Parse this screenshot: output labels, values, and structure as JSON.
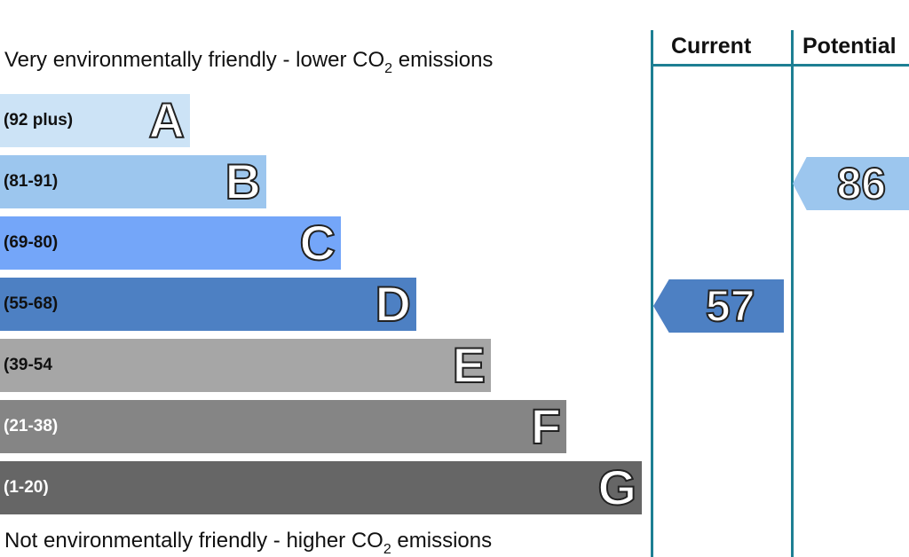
{
  "chart_data": {
    "type": "bar",
    "top_caption": {
      "pre": "Very environmentally friendly - lower CO",
      "sub": "2",
      "post": " emissions"
    },
    "bottom_caption": {
      "pre": "Not environmentally friendly - higher CO",
      "sub": "2",
      "post": " emissions"
    },
    "columns": [
      "Current",
      "Potential"
    ],
    "bands": [
      {
        "letter": "A",
        "range": "(92 plus)",
        "color": "#cce3f6",
        "dark_text": false
      },
      {
        "letter": "B",
        "range": "(81-91)",
        "color": "#9cc6ee",
        "dark_text": false
      },
      {
        "letter": "C",
        "range": "(69-80)",
        "color": "#74a6f9",
        "dark_text": false
      },
      {
        "letter": "D",
        "range": "(55-68)",
        "color": "#4d80c3",
        "dark_text": false
      },
      {
        "letter": "E",
        "range": "(39-54",
        "color": "#a6a6a6",
        "dark_text": false
      },
      {
        "letter": "F",
        "range": "(21-38)",
        "color": "#858585",
        "dark_text": true
      },
      {
        "letter": "G",
        "range": "(1-20)",
        "color": "#666666",
        "dark_text": true
      }
    ],
    "ratings": {
      "current": {
        "value": "57",
        "band": "D",
        "color": "#4d80c3"
      },
      "potential": {
        "value": "86",
        "band": "B",
        "color": "#9cc6ee"
      }
    }
  }
}
